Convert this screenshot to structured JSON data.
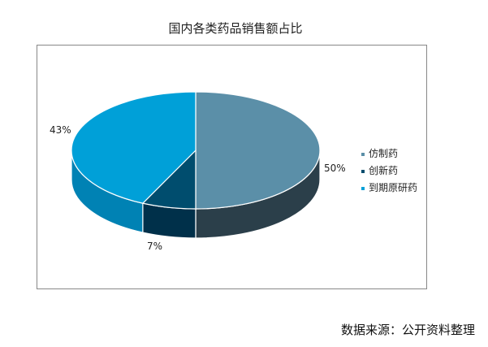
{
  "chart_data": {
    "type": "pie",
    "title": "国内各类药品销售额占比",
    "three_d": true,
    "start_angle": "12 o'clock, clockwise",
    "slices": [
      {
        "name": "仿制药",
        "value": 50,
        "label": "50%",
        "color": "#5b8fa8",
        "side_color": "#2b3f4a"
      },
      {
        "name": "创新药",
        "value": 7,
        "label": "7%",
        "color": "#004d6e",
        "side_color": "#00304a"
      },
      {
        "name": "到期原研药",
        "value": 43,
        "label": "43%",
        "color": "#00a0d8",
        "side_color": "#0082b4"
      }
    ],
    "legend_position": "right"
  },
  "source": "数据来源：公开资料整理"
}
